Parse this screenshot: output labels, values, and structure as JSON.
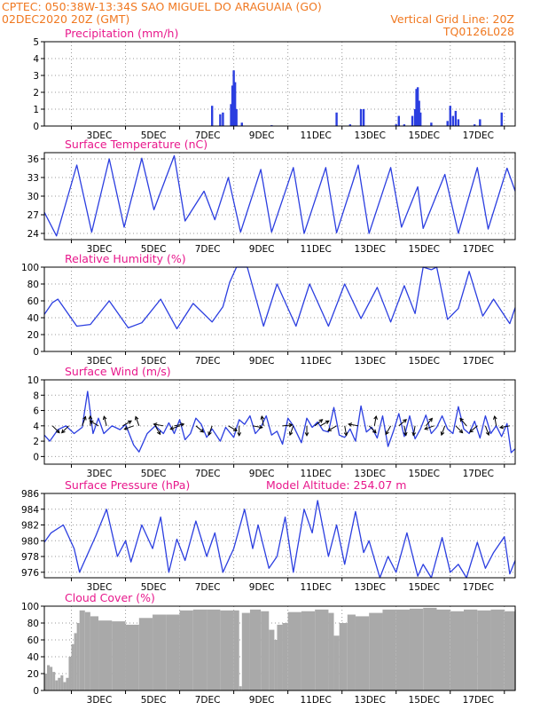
{
  "header": {
    "line1": "CPTEC:   050:38W-13:34S   SAO MIGUEL DO ARAGUAIA (GO)",
    "line2_left": "02DEC2020 20Z (GMT)",
    "line2_right": "Vertical Grid Line: 20Z",
    "line3_right": "TQ0126L028"
  },
  "colors": {
    "header": "#f07820",
    "title": "#e8188c",
    "line": "#2b3ee0",
    "cloud": "#a9a9a9"
  },
  "x_labels": [
    "3DEC",
    "5DEC",
    "7DEC",
    "9DEC",
    "11DEC",
    "13DEC",
    "15DEC",
    "17DEC"
  ],
  "chart_data": [
    {
      "id": "precip",
      "type": "bar",
      "title": "Precipitation (mm/h)",
      "ylim": [
        0,
        5
      ],
      "yticks": [
        0,
        1,
        2,
        3,
        4,
        5
      ],
      "points": [
        [
          6.2,
          1.2
        ],
        [
          6.5,
          0.7
        ],
        [
          6.6,
          0.8
        ],
        [
          6.9,
          1.3
        ],
        [
          6.95,
          2.4
        ],
        [
          7.0,
          3.3
        ],
        [
          7.05,
          2.6
        ],
        [
          7.1,
          1.0
        ],
        [
          7.3,
          0.2
        ],
        [
          8.4,
          0.05
        ],
        [
          10.8,
          0.8
        ],
        [
          11.3,
          0.1
        ],
        [
          11.7,
          1.0
        ],
        [
          11.8,
          1.0
        ],
        [
          13.0,
          0.1
        ],
        [
          13.1,
          0.6
        ],
        [
          13.3,
          0.1
        ],
        [
          13.6,
          0.6
        ],
        [
          13.7,
          1.0
        ],
        [
          13.75,
          2.2
        ],
        [
          13.8,
          2.3
        ],
        [
          13.85,
          1.5
        ],
        [
          13.9,
          0.8
        ],
        [
          14.3,
          0.2
        ],
        [
          14.9,
          0.3
        ],
        [
          15.0,
          1.2
        ],
        [
          15.1,
          0.6
        ],
        [
          15.2,
          0.9
        ],
        [
          15.3,
          0.4
        ],
        [
          15.9,
          0.1
        ],
        [
          16.1,
          0.4
        ],
        [
          16.9,
          0.8
        ]
      ]
    },
    {
      "id": "temp",
      "type": "line",
      "title": "Surface Temperature (nC)",
      "ylim": [
        23,
        37
      ],
      "yticks": [
        24,
        27,
        30,
        33,
        36
      ],
      "points": [
        [
          0,
          27.4
        ],
        [
          0.45,
          23.6
        ],
        [
          1.2,
          35
        ],
        [
          1.75,
          24.2
        ],
        [
          2.4,
          36
        ],
        [
          2.95,
          25
        ],
        [
          3.6,
          36.1
        ],
        [
          4.05,
          27.8
        ],
        [
          4.8,
          36.5
        ],
        [
          5.2,
          26
        ],
        [
          5.9,
          30.8
        ],
        [
          6.3,
          26.2
        ],
        [
          6.8,
          33
        ],
        [
          7.25,
          24.2
        ],
        [
          8.0,
          34.3
        ],
        [
          8.4,
          24.2
        ],
        [
          9.2,
          34.6
        ],
        [
          9.6,
          24
        ],
        [
          10.4,
          34.6
        ],
        [
          10.8,
          24.1
        ],
        [
          11.6,
          35
        ],
        [
          12.0,
          24
        ],
        [
          12.8,
          34.6
        ],
        [
          13.2,
          25
        ],
        [
          13.8,
          31.5
        ],
        [
          14.0,
          24.8
        ],
        [
          14.8,
          33.5
        ],
        [
          15.3,
          24
        ],
        [
          16.0,
          34.6
        ],
        [
          16.4,
          24.7
        ],
        [
          17.1,
          34.5
        ],
        [
          17.4,
          30.8
        ]
      ]
    },
    {
      "id": "rh",
      "type": "line",
      "title": "Relative Humidity (%)",
      "ylim": [
        0,
        100
      ],
      "yticks": [
        0,
        20,
        40,
        60,
        80,
        100
      ],
      "points": [
        [
          0,
          44
        ],
        [
          0.3,
          58
        ],
        [
          0.5,
          62
        ],
        [
          1.2,
          30
        ],
        [
          1.7,
          32
        ],
        [
          2.4,
          60
        ],
        [
          3.1,
          28
        ],
        [
          3.6,
          34
        ],
        [
          4.3,
          62
        ],
        [
          4.9,
          27
        ],
        [
          5.5,
          57
        ],
        [
          6.2,
          35
        ],
        [
          6.6,
          53
        ],
        [
          6.85,
          82
        ],
        [
          7.1,
          100
        ],
        [
          7.5,
          100
        ],
        [
          8.1,
          30
        ],
        [
          8.6,
          80
        ],
        [
          9.3,
          30
        ],
        [
          9.8,
          80
        ],
        [
          10.5,
          30
        ],
        [
          11.1,
          80
        ],
        [
          11.7,
          39
        ],
        [
          12.3,
          76
        ],
        [
          12.8,
          35
        ],
        [
          13.3,
          78
        ],
        [
          13.7,
          45
        ],
        [
          14.0,
          100
        ],
        [
          14.3,
          97
        ],
        [
          14.5,
          100
        ],
        [
          14.9,
          38
        ],
        [
          15.3,
          51
        ],
        [
          15.7,
          95
        ],
        [
          16.2,
          42
        ],
        [
          16.6,
          62
        ],
        [
          17.2,
          33
        ],
        [
          17.4,
          52
        ]
      ]
    },
    {
      "id": "wind",
      "type": "line",
      "title": "Surface Wind (m/s)",
      "ylim": [
        -1,
        10
      ],
      "yticks": [
        0,
        2,
        4,
        6,
        8,
        10
      ],
      "points": [
        [
          0,
          2.8
        ],
        [
          0.2,
          2.0
        ],
        [
          0.5,
          3.5
        ],
        [
          0.8,
          4.0
        ],
        [
          1.1,
          3.0
        ],
        [
          1.4,
          3.8
        ],
        [
          1.6,
          8.5
        ],
        [
          1.8,
          3.0
        ],
        [
          2.0,
          5.0
        ],
        [
          2.2,
          3.0
        ],
        [
          2.5,
          4.0
        ],
        [
          2.8,
          3.5
        ],
        [
          3.0,
          4.2
        ],
        [
          3.3,
          1.5
        ],
        [
          3.5,
          0.6
        ],
        [
          3.8,
          3.0
        ],
        [
          4.1,
          4.0
        ],
        [
          4.4,
          3.0
        ],
        [
          4.6,
          4.4
        ],
        [
          4.8,
          3.0
        ],
        [
          5.0,
          4.8
        ],
        [
          5.2,
          2.2
        ],
        [
          5.4,
          3.0
        ],
        [
          5.6,
          5.0
        ],
        [
          5.8,
          4.2
        ],
        [
          6.0,
          2.5
        ],
        [
          6.2,
          3.6
        ],
        [
          6.5,
          2.0
        ],
        [
          6.7,
          3.8
        ],
        [
          7.0,
          2.5
        ],
        [
          7.2,
          4.8
        ],
        [
          7.4,
          4.2
        ],
        [
          7.6,
          5.3
        ],
        [
          7.8,
          3.0
        ],
        [
          8.0,
          3.8
        ],
        [
          8.2,
          5.3
        ],
        [
          8.4,
          2.8
        ],
        [
          8.6,
          3.3
        ],
        [
          8.8,
          1.6
        ],
        [
          9.0,
          5.0
        ],
        [
          9.2,
          4.0
        ],
        [
          9.5,
          1.8
        ],
        [
          9.7,
          5.0
        ],
        [
          9.9,
          3.8
        ],
        [
          10.1,
          4.5
        ],
        [
          10.3,
          3.4
        ],
        [
          10.5,
          3.2
        ],
        [
          10.7,
          6.4
        ],
        [
          10.9,
          2.8
        ],
        [
          11.1,
          2.5
        ],
        [
          11.3,
          3.6
        ],
        [
          11.5,
          2.0
        ],
        [
          11.7,
          6.6
        ],
        [
          11.9,
          3.2
        ],
        [
          12.1,
          3.8
        ],
        [
          12.3,
          2.4
        ],
        [
          12.5,
          5.3
        ],
        [
          12.7,
          1.3
        ],
        [
          12.9,
          3.3
        ],
        [
          13.1,
          5.6
        ],
        [
          13.3,
          2.6
        ],
        [
          13.5,
          5.3
        ],
        [
          13.7,
          2.3
        ],
        [
          13.9,
          3.6
        ],
        [
          14.1,
          5.4
        ],
        [
          14.3,
          3.0
        ],
        [
          14.5,
          3.8
        ],
        [
          14.7,
          5.3
        ],
        [
          14.9,
          3.6
        ],
        [
          15.1,
          3.0
        ],
        [
          15.3,
          6.5
        ],
        [
          15.5,
          3.6
        ],
        [
          15.7,
          3.0
        ],
        [
          15.9,
          4.6
        ],
        [
          16.1,
          2.4
        ],
        [
          16.3,
          5.3
        ],
        [
          16.5,
          3.0
        ],
        [
          16.7,
          4.0
        ],
        [
          16.9,
          2.6
        ],
        [
          17.1,
          4.3
        ],
        [
          17.25,
          0.5
        ],
        [
          17.4,
          1.0
        ]
      ],
      "vectors": [
        [
          0.3,
          -45
        ],
        [
          0.9,
          -135
        ],
        [
          1.4,
          70
        ],
        [
          1.7,
          90
        ],
        [
          2.0,
          150
        ],
        [
          2.3,
          105
        ],
        [
          2.9,
          30
        ],
        [
          3.3,
          -160
        ],
        [
          3.5,
          110
        ],
        [
          4.1,
          -60
        ],
        [
          4.4,
          170
        ],
        [
          4.8,
          10
        ],
        [
          5.0,
          -160
        ],
        [
          5.6,
          -40
        ],
        [
          6.2,
          -110
        ],
        [
          6.8,
          -30
        ],
        [
          7.2,
          -90
        ],
        [
          7.7,
          -10
        ],
        [
          8.1,
          100
        ],
        [
          8.8,
          5
        ],
        [
          9.2,
          -110
        ],
        [
          9.7,
          -90
        ],
        [
          10.0,
          40
        ],
        [
          10.2,
          30
        ],
        [
          10.8,
          -150
        ],
        [
          11.1,
          -80
        ],
        [
          11.6,
          170
        ],
        [
          12.0,
          -45
        ],
        [
          12.2,
          80
        ],
        [
          12.8,
          -120
        ],
        [
          13.1,
          40
        ],
        [
          13.3,
          -80
        ],
        [
          13.7,
          -100
        ],
        [
          14.1,
          50
        ],
        [
          14.4,
          -160
        ],
        [
          14.8,
          -110
        ],
        [
          15.2,
          -45
        ],
        [
          15.6,
          130
        ],
        [
          16.0,
          -140
        ],
        [
          16.3,
          -70
        ],
        [
          16.7,
          100
        ],
        [
          17.2,
          -170
        ]
      ]
    },
    {
      "id": "pres",
      "type": "line",
      "title": "Surface Pressure (hPa)",
      "subtitle": "Model Altitude: 254.07 m",
      "ylim": [
        975.3,
        986
      ],
      "yticks": [
        976,
        978,
        980,
        982,
        984,
        986
      ],
      "points": [
        [
          0,
          979.8
        ],
        [
          0.25,
          981
        ],
        [
          0.7,
          982
        ],
        [
          1.1,
          979
        ],
        [
          1.3,
          976
        ],
        [
          1.9,
          980.6
        ],
        [
          2.3,
          984
        ],
        [
          2.7,
          978
        ],
        [
          3.0,
          980
        ],
        [
          3.2,
          977.3
        ],
        [
          3.6,
          982
        ],
        [
          4.0,
          979
        ],
        [
          4.3,
          983
        ],
        [
          4.6,
          976
        ],
        [
          4.9,
          980.2
        ],
        [
          5.2,
          977.5
        ],
        [
          5.6,
          982.5
        ],
        [
          6.0,
          978
        ],
        [
          6.3,
          981
        ],
        [
          6.6,
          976
        ],
        [
          7.0,
          979
        ],
        [
          7.4,
          984
        ],
        [
          7.7,
          979
        ],
        [
          7.9,
          982
        ],
        [
          8.3,
          976.5
        ],
        [
          8.6,
          978
        ],
        [
          8.9,
          983
        ],
        [
          9.2,
          976
        ],
        [
          9.6,
          984
        ],
        [
          9.9,
          981
        ],
        [
          10.1,
          985.1
        ],
        [
          10.5,
          978
        ],
        [
          10.8,
          982
        ],
        [
          11.1,
          977
        ],
        [
          11.5,
          983.7
        ],
        [
          11.8,
          978.5
        ],
        [
          12.0,
          980
        ],
        [
          12.4,
          975.3
        ],
        [
          12.7,
          978
        ],
        [
          13.0,
          976
        ],
        [
          13.4,
          981
        ],
        [
          13.8,
          975.5
        ],
        [
          14.0,
          977
        ],
        [
          14.3,
          975.3
        ],
        [
          14.7,
          980.4
        ],
        [
          15.0,
          976
        ],
        [
          15.3,
          977
        ],
        [
          15.6,
          975.3
        ],
        [
          16.0,
          979.8
        ],
        [
          16.3,
          976.5
        ],
        [
          16.6,
          978.5
        ],
        [
          17.0,
          980.5
        ],
        [
          17.2,
          975.8
        ],
        [
          17.4,
          977.5
        ]
      ]
    },
    {
      "id": "cloud",
      "type": "bar",
      "title": "Cloud Cover (%)",
      "ylim": [
        0,
        100
      ],
      "yticks": [
        0,
        20,
        40,
        60,
        80,
        100
      ],
      "points": [
        [
          0.0,
          20
        ],
        [
          0.1,
          30
        ],
        [
          0.2,
          28
        ],
        [
          0.3,
          22
        ],
        [
          0.4,
          12
        ],
        [
          0.5,
          15
        ],
        [
          0.6,
          18
        ],
        [
          0.7,
          10
        ],
        [
          0.8,
          15
        ],
        [
          0.9,
          40
        ],
        [
          1.0,
          55
        ],
        [
          1.1,
          68
        ],
        [
          1.2,
          80
        ],
        [
          1.3,
          95
        ],
        [
          1.5,
          93
        ],
        [
          1.7,
          88
        ],
        [
          2.0,
          83
        ],
        [
          2.5,
          82
        ],
        [
          3.0,
          78
        ],
        [
          3.5,
          86
        ],
        [
          4.0,
          90
        ],
        [
          4.5,
          90
        ],
        [
          5.0,
          95
        ],
        [
          5.5,
          96
        ],
        [
          6.0,
          96
        ],
        [
          6.5,
          95
        ],
        [
          7.0,
          95
        ],
        [
          7.2,
          5
        ],
        [
          7.3,
          92
        ],
        [
          7.6,
          96
        ],
        [
          8.0,
          94
        ],
        [
          8.3,
          72
        ],
        [
          8.5,
          60
        ],
        [
          8.6,
          78
        ],
        [
          8.8,
          80
        ],
        [
          9.0,
          93
        ],
        [
          9.5,
          94
        ],
        [
          10.0,
          96
        ],
        [
          10.5,
          92
        ],
        [
          10.7,
          65
        ],
        [
          10.9,
          80
        ],
        [
          11.2,
          90
        ],
        [
          11.5,
          88
        ],
        [
          12.0,
          92
        ],
        [
          12.5,
          96
        ],
        [
          13.0,
          96
        ],
        [
          13.5,
          97
        ],
        [
          14.0,
          98
        ],
        [
          14.5,
          96
        ],
        [
          15.0,
          94
        ],
        [
          15.5,
          96
        ],
        [
          16.0,
          95
        ],
        [
          16.5,
          96
        ],
        [
          17.0,
          94
        ],
        [
          17.4,
          96
        ]
      ]
    }
  ]
}
